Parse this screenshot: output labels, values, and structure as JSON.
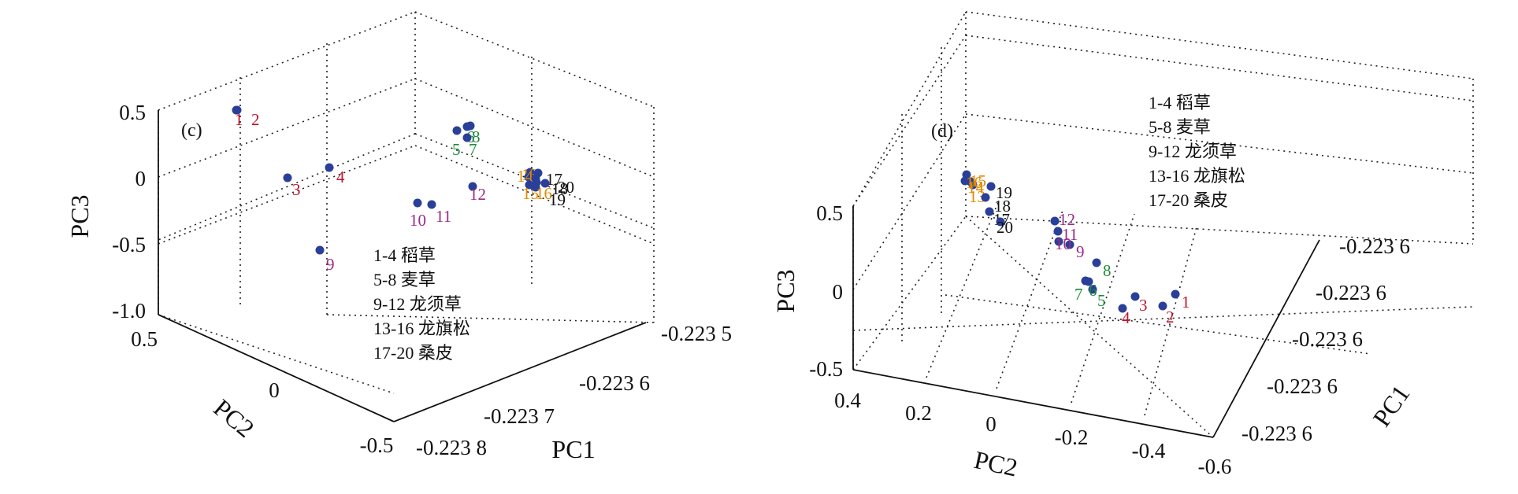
{
  "colors": {
    "point": "#2a3f98",
    "group_1_4": "#c0152c",
    "group_5_8": "#1e8a3a",
    "group_9_12": "#9a2a88",
    "group_13_16": "#e08a00",
    "group_17_20": "#111111"
  },
  "chart_data": [
    {
      "type": "scatter",
      "panel_label": "(c)",
      "xlabel": "PC1",
      "ylabel": "PC2",
      "zlabel": "PC3",
      "x_ticks": [
        "-0.223 5",
        "-0.223 6",
        "-0.223 7",
        "-0.223 8"
      ],
      "y_ticks": [
        "0.5",
        "0",
        "-0.5"
      ],
      "z_ticks": [
        "0.5",
        "0",
        "-0.5",
        "-1.0"
      ],
      "grid": true,
      "legend": [
        "1-4  稻草",
        "5-8  麦草",
        "9-12 龙须草",
        "13-16 龙旗松",
        "17-20 桑皮"
      ],
      "legend_position": "bottom-center",
      "points": [
        {
          "label": "1",
          "group": "1-4"
        },
        {
          "label": "2",
          "group": "1-4"
        },
        {
          "label": "3",
          "group": "1-4"
        },
        {
          "label": "4",
          "group": "1-4"
        },
        {
          "label": "5",
          "group": "5-8"
        },
        {
          "label": "6",
          "group": "5-8"
        },
        {
          "label": "7",
          "group": "5-8"
        },
        {
          "label": "8",
          "group": "5-8"
        },
        {
          "label": "9",
          "group": "9-12"
        },
        {
          "label": "10",
          "group": "9-12"
        },
        {
          "label": "11",
          "group": "9-12"
        },
        {
          "label": "12",
          "group": "9-12"
        },
        {
          "label": "13",
          "group": "13-16"
        },
        {
          "label": "14",
          "group": "13-16"
        },
        {
          "label": "15",
          "group": "13-16"
        },
        {
          "label": "16",
          "group": "13-16"
        },
        {
          "label": "17",
          "group": "17-20"
        },
        {
          "label": "18",
          "group": "17-20"
        },
        {
          "label": "19",
          "group": "17-20"
        },
        {
          "label": "20",
          "group": "17-20"
        }
      ]
    },
    {
      "type": "scatter",
      "panel_label": "(d)",
      "xlabel": "PC1",
      "ylabel": "PC2",
      "zlabel": "PC3",
      "x_ticks": [
        "-0.223 6",
        "-0.223 6",
        "-0.223 6",
        "-0.223 6",
        "-0.223 6"
      ],
      "y_ticks": [
        "0.4",
        "0.2",
        "0",
        "-0.2",
        "-0.4",
        "-0.6"
      ],
      "z_ticks": [
        "0.5",
        "0",
        "-0.5"
      ],
      "grid": true,
      "legend": [
        "1-4  稻草",
        "5-8  麦草",
        "9-12 龙须草",
        "13-16 龙旗松",
        "17-20 桑皮"
      ],
      "legend_position": "top-right",
      "points": [
        {
          "label": "1",
          "group": "1-4"
        },
        {
          "label": "2",
          "group": "1-4"
        },
        {
          "label": "3",
          "group": "1-4"
        },
        {
          "label": "4",
          "group": "1-4"
        },
        {
          "label": "5",
          "group": "5-8"
        },
        {
          "label": "6",
          "group": "5-8"
        },
        {
          "label": "7",
          "group": "5-8"
        },
        {
          "label": "8",
          "group": "5-8"
        },
        {
          "label": "9",
          "group": "9-12"
        },
        {
          "label": "10",
          "group": "9-12"
        },
        {
          "label": "11",
          "group": "9-12"
        },
        {
          "label": "12",
          "group": "9-12"
        },
        {
          "label": "13",
          "group": "13-16"
        },
        {
          "label": "14",
          "group": "13-16"
        },
        {
          "label": "15",
          "group": "13-16"
        },
        {
          "label": "16",
          "group": "13-16"
        },
        {
          "label": "17",
          "group": "17-20"
        },
        {
          "label": "18",
          "group": "17-20"
        },
        {
          "label": "19",
          "group": "17-20"
        },
        {
          "label": "20",
          "group": "17-20"
        }
      ]
    }
  ]
}
